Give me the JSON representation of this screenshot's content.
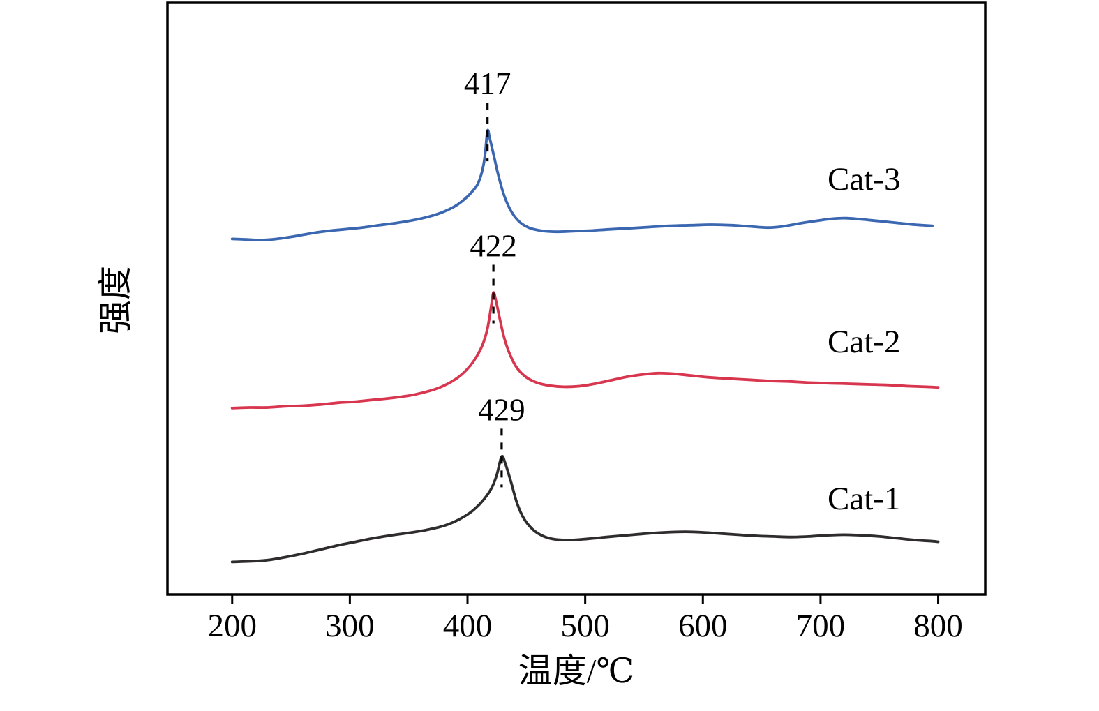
{
  "figure": {
    "background": "#ffffff",
    "frame_color": "#000000"
  },
  "chart_data": {
    "type": "line",
    "title": "",
    "xlabel": "温度/℃",
    "ylabel": "强度",
    "xlim": [
      145,
      840
    ],
    "ylim": [
      0,
      100
    ],
    "x_ticks": [
      200,
      300,
      400,
      500,
      600,
      700,
      800
    ],
    "grid": false,
    "legend_position": "inline-right",
    "series": [
      {
        "name": "Cat-1",
        "color": "#2f2c2d",
        "peak": {
          "x": 429,
          "label": "429"
        },
        "label_pos": {
          "x": 706,
          "y": 14.4
        },
        "points": [
          [
            200,
            5.5
          ],
          [
            215,
            5.6
          ],
          [
            230,
            5.8
          ],
          [
            245,
            6.3
          ],
          [
            260,
            6.9
          ],
          [
            275,
            7.6
          ],
          [
            290,
            8.3
          ],
          [
            305,
            8.9
          ],
          [
            320,
            9.5
          ],
          [
            335,
            10.0
          ],
          [
            350,
            10.4
          ],
          [
            365,
            10.9
          ],
          [
            380,
            11.6
          ],
          [
            392,
            12.6
          ],
          [
            402,
            13.8
          ],
          [
            410,
            15.2
          ],
          [
            416,
            16.6
          ],
          [
            421,
            18.2
          ],
          [
            425,
            20.3
          ],
          [
            429,
            23.3
          ],
          [
            432,
            22.2
          ],
          [
            437,
            19.0
          ],
          [
            442,
            15.5
          ],
          [
            448,
            12.8
          ],
          [
            456,
            10.9
          ],
          [
            465,
            9.8
          ],
          [
            475,
            9.3
          ],
          [
            488,
            9.2
          ],
          [
            502,
            9.4
          ],
          [
            518,
            9.7
          ],
          [
            535,
            10.0
          ],
          [
            552,
            10.3
          ],
          [
            568,
            10.5
          ],
          [
            585,
            10.6
          ],
          [
            600,
            10.5
          ],
          [
            615,
            10.3
          ],
          [
            630,
            10.1
          ],
          [
            645,
            9.9
          ],
          [
            660,
            9.8
          ],
          [
            675,
            9.7
          ],
          [
            690,
            9.8
          ],
          [
            705,
            10.0
          ],
          [
            720,
            10.1
          ],
          [
            735,
            10.0
          ],
          [
            750,
            9.8
          ],
          [
            765,
            9.5
          ],
          [
            780,
            9.2
          ],
          [
            795,
            9.0
          ],
          [
            800,
            8.9
          ]
        ]
      },
      {
        "name": "Cat-2",
        "color": "#d8354f",
        "peak": {
          "x": 422,
          "label": "422"
        },
        "label_pos": {
          "x": 706,
          "y": 40.9
        },
        "points": [
          [
            200,
            31.5
          ],
          [
            215,
            31.6
          ],
          [
            230,
            31.6
          ],
          [
            245,
            31.8
          ],
          [
            260,
            31.9
          ],
          [
            275,
            32.1
          ],
          [
            290,
            32.4
          ],
          [
            305,
            32.6
          ],
          [
            320,
            32.9
          ],
          [
            335,
            33.2
          ],
          [
            350,
            33.6
          ],
          [
            362,
            34.1
          ],
          [
            374,
            34.8
          ],
          [
            385,
            35.8
          ],
          [
            394,
            37.0
          ],
          [
            402,
            38.6
          ],
          [
            408,
            40.3
          ],
          [
            413,
            42.3
          ],
          [
            417,
            45.0
          ],
          [
            420,
            48.5
          ],
          [
            422,
            51.0
          ],
          [
            424,
            49.8
          ],
          [
            427,
            47.0
          ],
          [
            431,
            43.5
          ],
          [
            436,
            40.6
          ],
          [
            442,
            38.3
          ],
          [
            450,
            36.7
          ],
          [
            459,
            35.8
          ],
          [
            470,
            35.3
          ],
          [
            482,
            35.1
          ],
          [
            495,
            35.2
          ],
          [
            508,
            35.6
          ],
          [
            522,
            36.2
          ],
          [
            536,
            36.8
          ],
          [
            550,
            37.2
          ],
          [
            562,
            37.4
          ],
          [
            575,
            37.3
          ],
          [
            590,
            37.0
          ],
          [
            605,
            36.7
          ],
          [
            620,
            36.5
          ],
          [
            638,
            36.3
          ],
          [
            655,
            36.1
          ],
          [
            672,
            36.0
          ],
          [
            690,
            35.8
          ],
          [
            708,
            35.7
          ],
          [
            725,
            35.6
          ],
          [
            742,
            35.5
          ],
          [
            758,
            35.4
          ],
          [
            775,
            35.2
          ],
          [
            790,
            35.1
          ],
          [
            800,
            35.0
          ]
        ]
      },
      {
        "name": "Cat-3",
        "color": "#3b67b1",
        "peak": {
          "x": 417,
          "label": "417"
        },
        "label_pos": {
          "x": 706,
          "y": 68.4
        },
        "points": [
          [
            200,
            60.1
          ],
          [
            212,
            60.0
          ],
          [
            225,
            59.9
          ],
          [
            238,
            60.1
          ],
          [
            252,
            60.5
          ],
          [
            266,
            61.0
          ],
          [
            280,
            61.4
          ],
          [
            295,
            61.7
          ],
          [
            310,
            62.0
          ],
          [
            325,
            62.4
          ],
          [
            340,
            62.8
          ],
          [
            355,
            63.3
          ],
          [
            368,
            63.9
          ],
          [
            380,
            64.7
          ],
          [
            390,
            65.7
          ],
          [
            398,
            66.9
          ],
          [
            404,
            68.1
          ],
          [
            409,
            69.5
          ],
          [
            413,
            72.0
          ],
          [
            415,
            74.5
          ],
          [
            417,
            78.4
          ],
          [
            419,
            77.0
          ],
          [
            422,
            74.5
          ],
          [
            426,
            71.0
          ],
          [
            431,
            67.5
          ],
          [
            437,
            64.8
          ],
          [
            444,
            63.0
          ],
          [
            452,
            62.0
          ],
          [
            462,
            61.5
          ],
          [
            475,
            61.3
          ],
          [
            490,
            61.4
          ],
          [
            505,
            61.5
          ],
          [
            520,
            61.7
          ],
          [
            538,
            61.9
          ],
          [
            555,
            62.1
          ],
          [
            572,
            62.3
          ],
          [
            590,
            62.4
          ],
          [
            608,
            62.5
          ],
          [
            625,
            62.4
          ],
          [
            640,
            62.2
          ],
          [
            655,
            62.0
          ],
          [
            668,
            62.2
          ],
          [
            682,
            62.7
          ],
          [
            695,
            63.1
          ],
          [
            710,
            63.5
          ],
          [
            722,
            63.6
          ],
          [
            735,
            63.4
          ],
          [
            750,
            63.1
          ],
          [
            765,
            62.8
          ],
          [
            780,
            62.5
          ],
          [
            795,
            62.3
          ]
        ]
      }
    ]
  }
}
